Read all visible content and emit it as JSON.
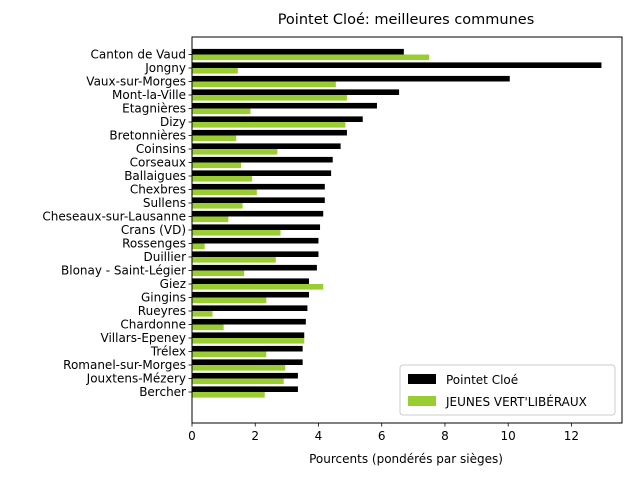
{
  "chart_data": {
    "type": "bar",
    "orientation": "horizontal",
    "title": "Pointet Cloé: meilleures communes",
    "xlabel": "Pourcents (pondérés par sièges)",
    "ylabel": "",
    "xlim": [
      0,
      13.6
    ],
    "xticks": [
      0,
      2,
      4,
      6,
      8,
      10,
      12
    ],
    "legend_position": "lower-right",
    "categories": [
      "Canton de Vaud",
      "Jongny",
      "Vaux-sur-Morges",
      "Mont-la-Ville",
      "Etagnières",
      "Dizy",
      "Bretonnières",
      "Coinsins",
      "Corseaux",
      "Ballaigues",
      "Chexbres",
      "Sullens",
      "Cheseaux-sur-Lausanne",
      "Crans (VD)",
      "Rossenges",
      "Duillier",
      "Blonay - Saint-Légier",
      "Giez",
      "Gingins",
      "Rueyres",
      "Chardonne",
      "Villars-Epeney",
      "Trélex",
      "Romanel-sur-Morges",
      "Jouxtens-Mézery",
      "Bercher"
    ],
    "series": [
      {
        "name": "Pointet Cloé",
        "color": "#000000",
        "values": [
          6.7,
          12.95,
          10.05,
          6.55,
          5.85,
          5.4,
          4.9,
          4.7,
          4.45,
          4.4,
          4.2,
          4.2,
          4.15,
          4.05,
          4.0,
          4.0,
          3.95,
          3.7,
          3.7,
          3.65,
          3.6,
          3.55,
          3.5,
          3.5,
          3.35,
          3.35
        ]
      },
      {
        "name": "JEUNES VERT'LIBÉRAUX",
        "color": "#9acd32",
        "values": [
          7.5,
          1.45,
          4.55,
          4.9,
          1.85,
          4.85,
          1.4,
          2.7,
          1.55,
          1.9,
          2.05,
          1.6,
          1.15,
          2.8,
          0.4,
          2.65,
          1.65,
          4.15,
          2.35,
          0.65,
          1.0,
          3.55,
          2.35,
          2.95,
          2.9,
          2.3
        ]
      }
    ]
  }
}
